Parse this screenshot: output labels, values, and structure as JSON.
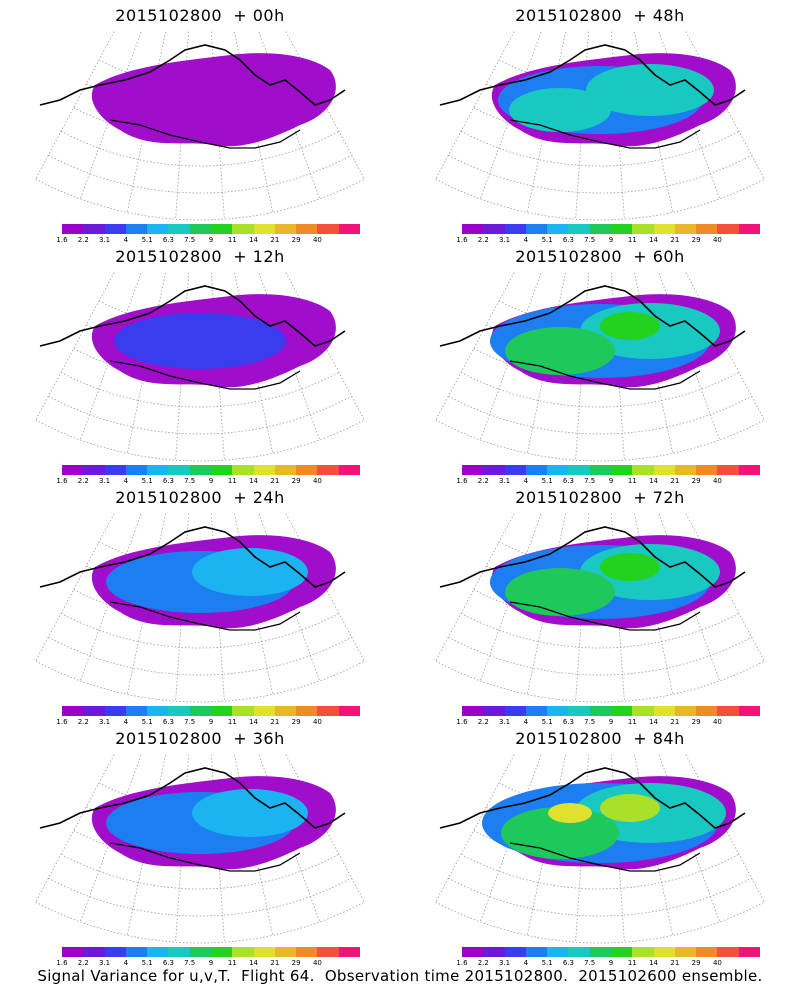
{
  "panels": [
    {
      "title": "2015102800  + 00h",
      "coverage": "low"
    },
    {
      "title": "2015102800  + 48h",
      "coverage": "medium-high"
    },
    {
      "title": "2015102800  + 12h",
      "coverage": "low-medium"
    },
    {
      "title": "2015102800  + 60h",
      "coverage": "high"
    },
    {
      "title": "2015102800  + 24h",
      "coverage": "medium"
    },
    {
      "title": "2015102800  + 72h",
      "coverage": "high"
    },
    {
      "title": "2015102800  + 36h",
      "coverage": "medium"
    },
    {
      "title": "2015102800  + 84h",
      "coverage": "very-high"
    }
  ],
  "colorbar": {
    "labels": [
      "1.6",
      "2.2",
      "3.1",
      "4",
      "5.1",
      "6.3",
      "7.5",
      "9",
      "11",
      "14",
      "21",
      "29",
      "40"
    ],
    "colors": [
      "#9b00c8",
      "#6a1ad8",
      "#3a3cf0",
      "#1c7ef0",
      "#1bb4f0",
      "#19c8c0",
      "#1ec85a",
      "#22d21e",
      "#a8e02a",
      "#e0e02e",
      "#e8b82a",
      "#f08a28",
      "#f0503c",
      "#f0147a"
    ]
  },
  "footer": "Signal Variance for u,v,T.  Flight 64.  Observation time 2015102800.  2015102600 ensemble."
}
